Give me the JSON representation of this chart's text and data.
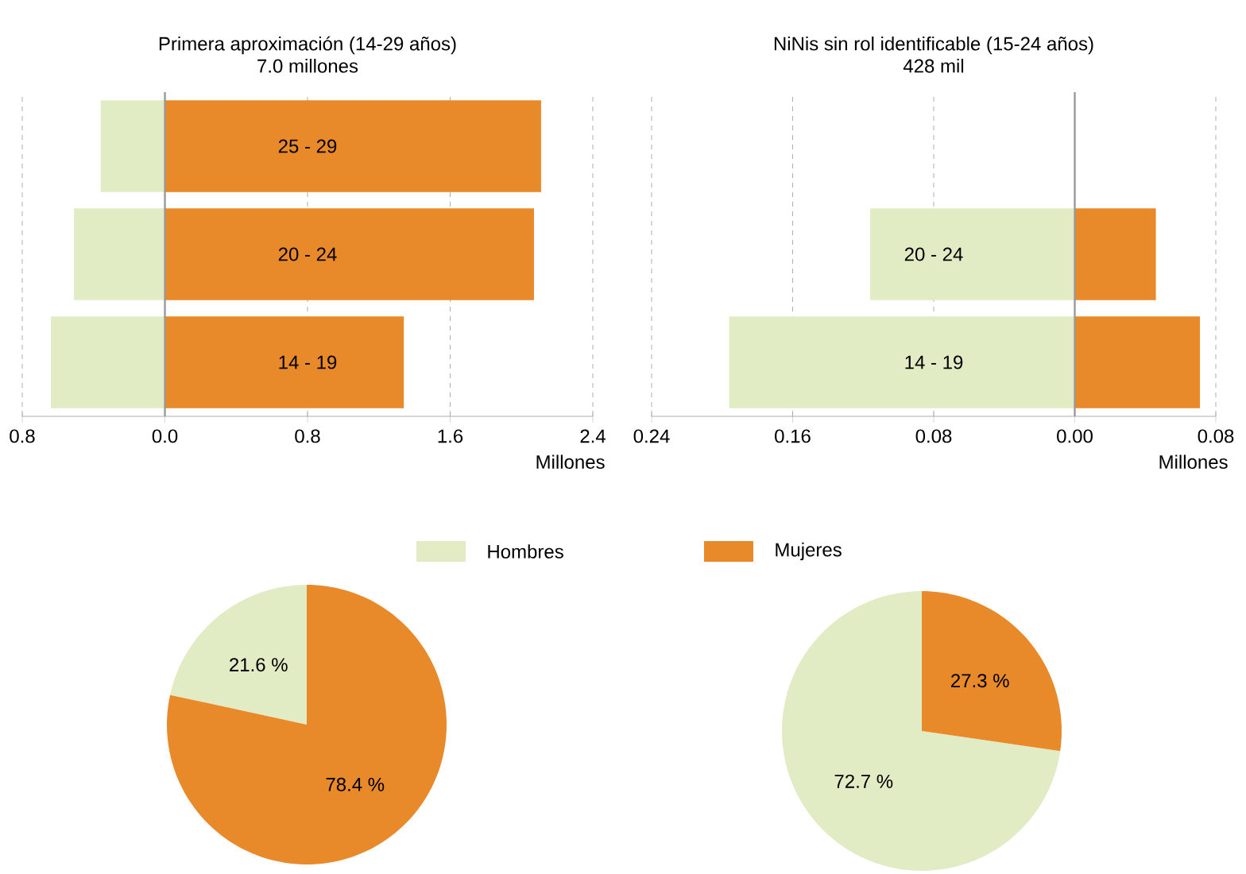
{
  "chart_data": [
    {
      "type": "bar",
      "orientation": "horizontal",
      "title": "Primera aproximación (14-29 años)",
      "subtitle": "7.0 millones",
      "xlabel": "Millones",
      "categories": [
        "25 - 29",
        "20 - 24",
        "14 - 19"
      ],
      "series": [
        {
          "color": "#e2ecc4",
          "values": [
            -0.36,
            -0.51,
            -0.64
          ]
        },
        {
          "color": "#e8892a",
          "values": [
            2.11,
            2.07,
            1.34
          ]
        }
      ],
      "stacked": true,
      "xlim": [
        -0.8,
        2.4
      ],
      "xticks": [
        {
          "value": -0.8,
          "label": "0.8"
        },
        {
          "value": 0,
          "label": "0.0"
        },
        0.8,
        1.6,
        2.4
      ],
      "grid": "x"
    },
    {
      "type": "bar",
      "orientation": "horizontal",
      "title": "NiNis sin rol identificable (15-24 años)",
      "subtitle": "428 mil",
      "xlabel": "Millones",
      "categories": [
        "20 - 24",
        "14 - 19"
      ],
      "series": [
        {
          "color": "#e2ecc4",
          "values": [
            -0.116,
            -0.196
          ]
        },
        {
          "color": "#e8892a",
          "values": [
            0.046,
            0.071
          ]
        }
      ],
      "stacked": true,
      "xlim": [
        -0.24,
        0.08
      ],
      "xticks": [
        {
          "value": -0.24,
          "label": "0.24"
        },
        {
          "value": -0.16,
          "label": "0.16"
        },
        {
          "value": -0.08,
          "label": "0.08"
        },
        {
          "value": 0,
          "label": "0.00"
        },
        0.08
      ],
      "grid": "x"
    },
    {
      "type": "pie",
      "categories": [
        "Hombres",
        "Mujeres"
      ],
      "values": [
        21.6,
        78.4
      ],
      "colors": [
        "#e2ecc4",
        "#e8892a"
      ],
      "value_labels": [
        "21.6 %",
        "78.4 %"
      ],
      "legend": "top"
    },
    {
      "type": "pie",
      "categories": [
        null,
        null
      ],
      "values": [
        72.7,
        27.3
      ],
      "colors": [
        "#e2ecc4",
        "#e8892a"
      ],
      "value_labels": [
        "72.7 %",
        "27.3 %"
      ]
    }
  ]
}
